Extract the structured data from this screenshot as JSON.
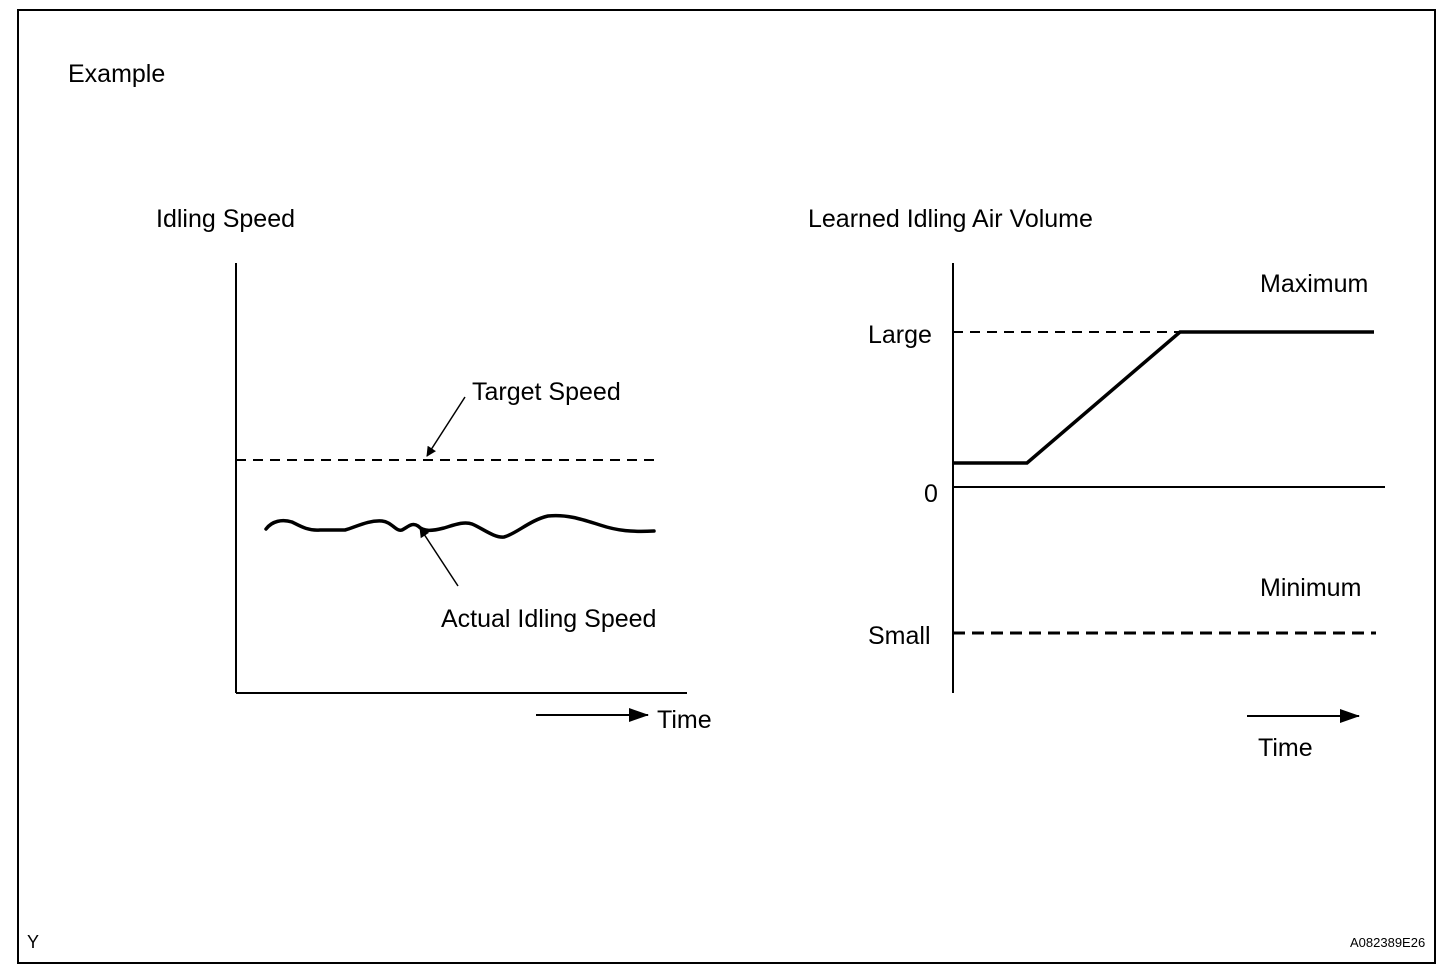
{
  "example_label": "Example",
  "left_panel": {
    "title": "Idling Speed",
    "target_label": "Target Speed",
    "actual_label": "Actual Idling Speed",
    "time_label": "Time"
  },
  "right_panel": {
    "title": "Learned Idling Air Volume",
    "maximum_label": "Maximum",
    "minimum_label": "Minimum",
    "large_label": "Large",
    "small_label": "Small",
    "zero_label": "0",
    "time_label": "Time"
  },
  "corner_left": "Y",
  "corner_right": "A082389E26"
}
